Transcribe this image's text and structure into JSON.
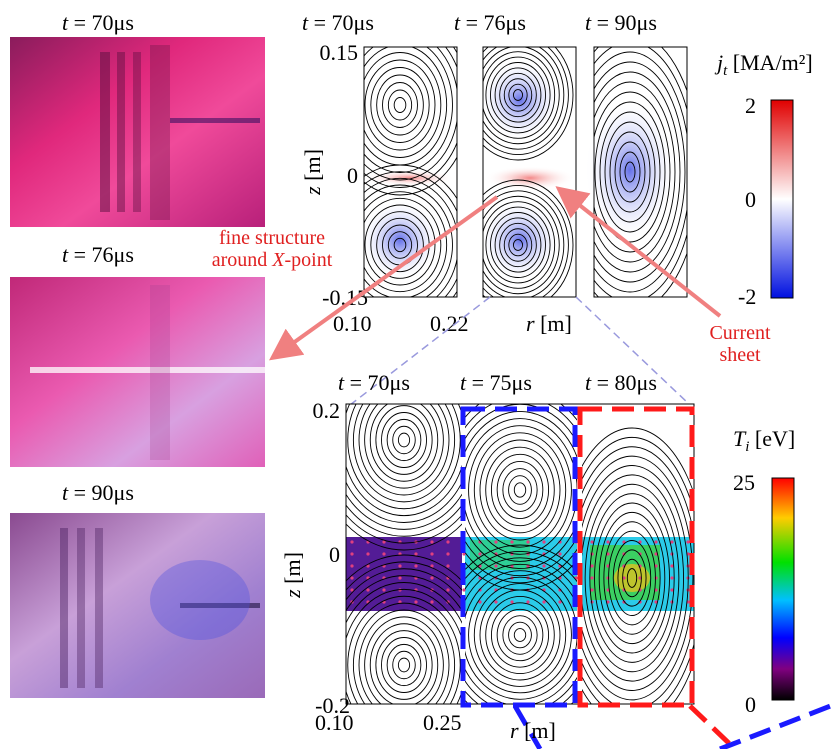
{
  "photos": [
    {
      "label_t": "t",
      "label_v": " = 70μs"
    },
    {
      "label_t": "t",
      "label_v": " = 76μs"
    },
    {
      "label_t": "t",
      "label_v": " = 90μs"
    }
  ],
  "top_panel": {
    "times": [
      {
        "t": "t",
        "v": " = 70μs"
      },
      {
        "t": "t",
        "v": " = 76μs"
      },
      {
        "t": "t",
        "v": " = 90μs"
      }
    ],
    "ylabel_var": "z",
    "ylabel_unit": " [m]",
    "yticks": [
      "0.15",
      "0",
      "-0.15"
    ],
    "xticks": [
      "0.10",
      "0.22"
    ],
    "xlabel_var": "r",
    "xlabel_unit": " [m]",
    "colorbar": {
      "var": "j",
      "sub": "t",
      "unit": " [MA/m²]",
      "ticks": [
        "2",
        "0",
        "-2"
      ]
    }
  },
  "bottom_panel": {
    "times": [
      {
        "t": "t",
        "v": " = 70μs"
      },
      {
        "t": "t",
        "v": " = 75μs"
      },
      {
        "t": "t",
        "v": " = 80μs"
      }
    ],
    "ylabel_var": "z",
    "ylabel_unit": " [m]",
    "yticks": [
      "0.2",
      "0",
      "-0.2"
    ],
    "xticks": [
      "0.10",
      "0.25"
    ],
    "xlabel_var": "r",
    "xlabel_unit": " [m]",
    "colorbar": {
      "var": "T",
      "sub": "i",
      "unit": " [eV]",
      "ticks": [
        "25",
        "0"
      ]
    }
  },
  "annotations": {
    "fine_structure_1": "fine structure",
    "fine_structure_2a": "around ",
    "fine_structure_x": "X",
    "fine_structure_2b": "-point",
    "current_sheet_1": "Current",
    "current_sheet_2": "sheet"
  },
  "colors": {
    "annotation_red": "#e02020",
    "arrow_pink": "#f08080",
    "box_blue": "#1a1aff",
    "box_red": "#ff1a1a",
    "dashed_guide": "#9999dd"
  }
}
